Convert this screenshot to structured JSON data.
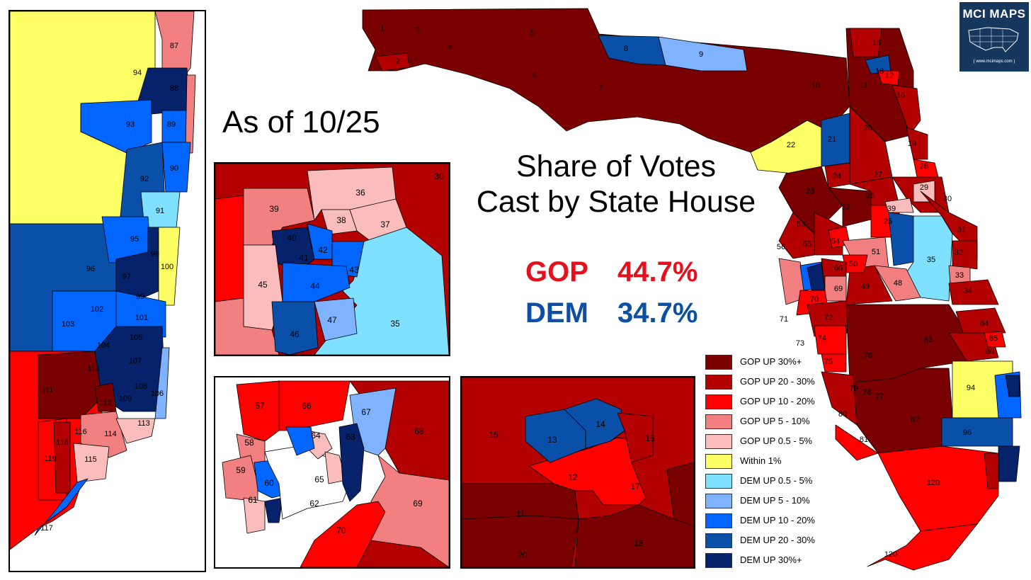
{
  "heading": {
    "as_of": "As of 10/25",
    "title_line1": "Share of Votes",
    "title_line2": "Cast by State House"
  },
  "totals": {
    "gop_label": "GOP",
    "gop_value": "44.7%",
    "dem_label": "DEM",
    "dem_value": "34.7%"
  },
  "logo": {
    "text": "MCI MAPS",
    "subtext": "{ www.mcimaps.com }"
  },
  "colors": {
    "gop30": "#7a0000",
    "gop20": "#b30000",
    "gop10": "#ff0000",
    "gop5": "#f28080",
    "gop05": "#fbbcbc",
    "within": "#ffff66",
    "dem05": "#80e0ff",
    "dem5": "#80b3ff",
    "dem10": "#0066ff",
    "dem20": "#0a4fa8",
    "dem30": "#06226b",
    "nodata": "#ffffff"
  },
  "legend": [
    {
      "label": "GOP UP 30%+",
      "color": "#7a0000"
    },
    {
      "label": "GOP UP 20 - 30%",
      "color": "#b30000"
    },
    {
      "label": "GOP UP 10 - 20%",
      "color": "#ff0000"
    },
    {
      "label": "GOP UP 5 - 10%",
      "color": "#f28080"
    },
    {
      "label": "GOP UP 0.5 - 5%",
      "color": "#fbbcbc"
    },
    {
      "label": "Within 1%",
      "color": "#ffff66"
    },
    {
      "label": "DEM UP 0.5 - 5%",
      "color": "#80e0ff"
    },
    {
      "label": "DEM UP 5 - 10%",
      "color": "#80b3ff"
    },
    {
      "label": "DEM UP 10 - 20%",
      "color": "#0066ff"
    },
    {
      "label": "DEM UP 20 - 30%",
      "color": "#0a4fa8"
    },
    {
      "label": "DEM UP 30%+",
      "color": "#06226b"
    }
  ],
  "district_labels": {
    "main": [
      "1",
      "2",
      "3",
      "4",
      "5",
      "6",
      "7",
      "8",
      "9",
      "10",
      "11",
      "12",
      "15",
      "16",
      "18",
      "19",
      "20",
      "21",
      "22",
      "23",
      "24",
      "25",
      "26",
      "27",
      "28",
      "29",
      "30",
      "31",
      "32",
      "33",
      "34",
      "35",
      "39",
      "48",
      "49",
      "50",
      "51",
      "52",
      "53",
      "54",
      "55",
      "56",
      "66",
      "69",
      "70",
      "71",
      "72",
      "73",
      "74",
      "75",
      "76",
      "77",
      "78",
      "79",
      "80",
      "81",
      "82",
      "83",
      "84",
      "85",
      "86",
      "94",
      "96",
      "120",
      "120"
    ],
    "southeast": [
      "87",
      "88",
      "89",
      "90",
      "91",
      "92",
      "93",
      "94",
      "95",
      "96",
      "97",
      "98",
      "99",
      "100",
      "101",
      "102",
      "103",
      "104",
      "105",
      "106",
      "107",
      "108",
      "109",
      "110",
      "111",
      "112",
      "113",
      "114",
      "115",
      "116",
      "117",
      "118",
      "119"
    ],
    "orlando": [
      "30",
      "35",
      "36",
      "37",
      "38",
      "39",
      "40",
      "41",
      "42",
      "43",
      "44",
      "45",
      "46",
      "47"
    ],
    "tampa": [
      "57",
      "58",
      "59",
      "60",
      "61",
      "62",
      "63",
      "64",
      "65",
      "66",
      "67",
      "68",
      "69",
      "70"
    ],
    "jacksonville": [
      "11",
      "12",
      "13",
      "14",
      "15",
      "16",
      "17",
      "18",
      "20"
    ]
  }
}
